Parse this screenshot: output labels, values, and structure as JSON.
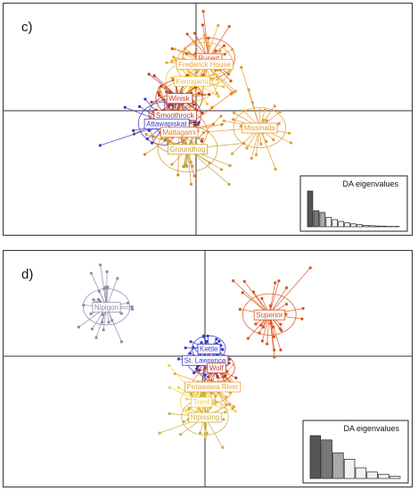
{
  "chart_data": [
    {
      "type": "scatter",
      "panel_label": "c)",
      "populations": [
        {
          "name": "Rupert",
          "color": "#d9531e",
          "cx": 0.15,
          "cy": 0.62,
          "spread": 0.28,
          "n": 30
        },
        {
          "name": "Frederick House",
          "color": "#e8a23a",
          "cx": 0.1,
          "cy": 0.55,
          "spread": 0.3,
          "n": 30
        },
        {
          "name": "Kenogami",
          "color": "#f2c12e",
          "cx": -0.05,
          "cy": 0.35,
          "spread": 0.28,
          "n": 30
        },
        {
          "name": "Winisk",
          "color": "#c0392b",
          "cx": -0.2,
          "cy": 0.15,
          "spread": 0.25,
          "n": 30
        },
        {
          "name": "Smoothrock",
          "color": "#b03a2e",
          "cx": -0.25,
          "cy": -0.05,
          "spread": 0.28,
          "n": 30
        },
        {
          "name": "Attawapiskat",
          "color": "#3a3ac8",
          "cx": -0.35,
          "cy": -0.15,
          "spread": 0.3,
          "n": 30
        },
        {
          "name": "Mattagami",
          "color": "#e67e22",
          "cx": -0.2,
          "cy": -0.25,
          "spread": 0.3,
          "n": 30
        },
        {
          "name": "Groundhog",
          "color": "#c8a032",
          "cx": -0.1,
          "cy": -0.45,
          "spread": 0.32,
          "n": 30
        },
        {
          "name": "Missinaibi",
          "color": "#e59b2e",
          "cx": 0.75,
          "cy": -0.2,
          "spread": 0.28,
          "n": 30
        }
      ],
      "eigen_title": "DA eigenvalues",
      "eigenvalues": [
        10,
        4.5,
        4.0,
        2.6,
        2.0,
        1.5,
        1.1,
        0.8,
        0.6,
        0.4,
        0.3,
        0.2,
        0.15,
        0.1,
        0.1
      ]
    },
    {
      "type": "scatter",
      "panel_label": "d)",
      "populations": [
        {
          "name": "Nipigon",
          "color": "#8a8aa8",
          "cx": -1.3,
          "cy": 0.65,
          "spread": 0.28,
          "n": 28
        },
        {
          "name": "Superior",
          "color": "#d9531e",
          "cx": 0.85,
          "cy": 0.55,
          "spread": 0.32,
          "n": 35
        },
        {
          "name": "Kettle",
          "color": "#3a3ac8",
          "cx": 0.05,
          "cy": 0.1,
          "spread": 0.2,
          "n": 25
        },
        {
          "name": "St. Lawrence",
          "color": "#3a3ac8",
          "cx": 0.0,
          "cy": -0.05,
          "spread": 0.22,
          "n": 25
        },
        {
          "name": "Wolf",
          "color": "#c0392b",
          "cx": 0.15,
          "cy": -0.15,
          "spread": 0.22,
          "n": 25
        },
        {
          "name": "Petawawa River",
          "color": "#e8a23a",
          "cx": 0.1,
          "cy": -0.4,
          "spread": 0.25,
          "n": 25
        },
        {
          "name": "Trent",
          "color": "#f2d13e",
          "cx": -0.05,
          "cy": -0.6,
          "spread": 0.25,
          "n": 25
        },
        {
          "name": "Nipissing",
          "color": "#c8b040",
          "cx": 0.0,
          "cy": -0.8,
          "spread": 0.28,
          "n": 25
        }
      ],
      "eigen_title": "DA eigenvalues",
      "eigenvalues": [
        10,
        9.0,
        6.0,
        4.5,
        2.5,
        1.5,
        1.0,
        0.5
      ]
    }
  ]
}
